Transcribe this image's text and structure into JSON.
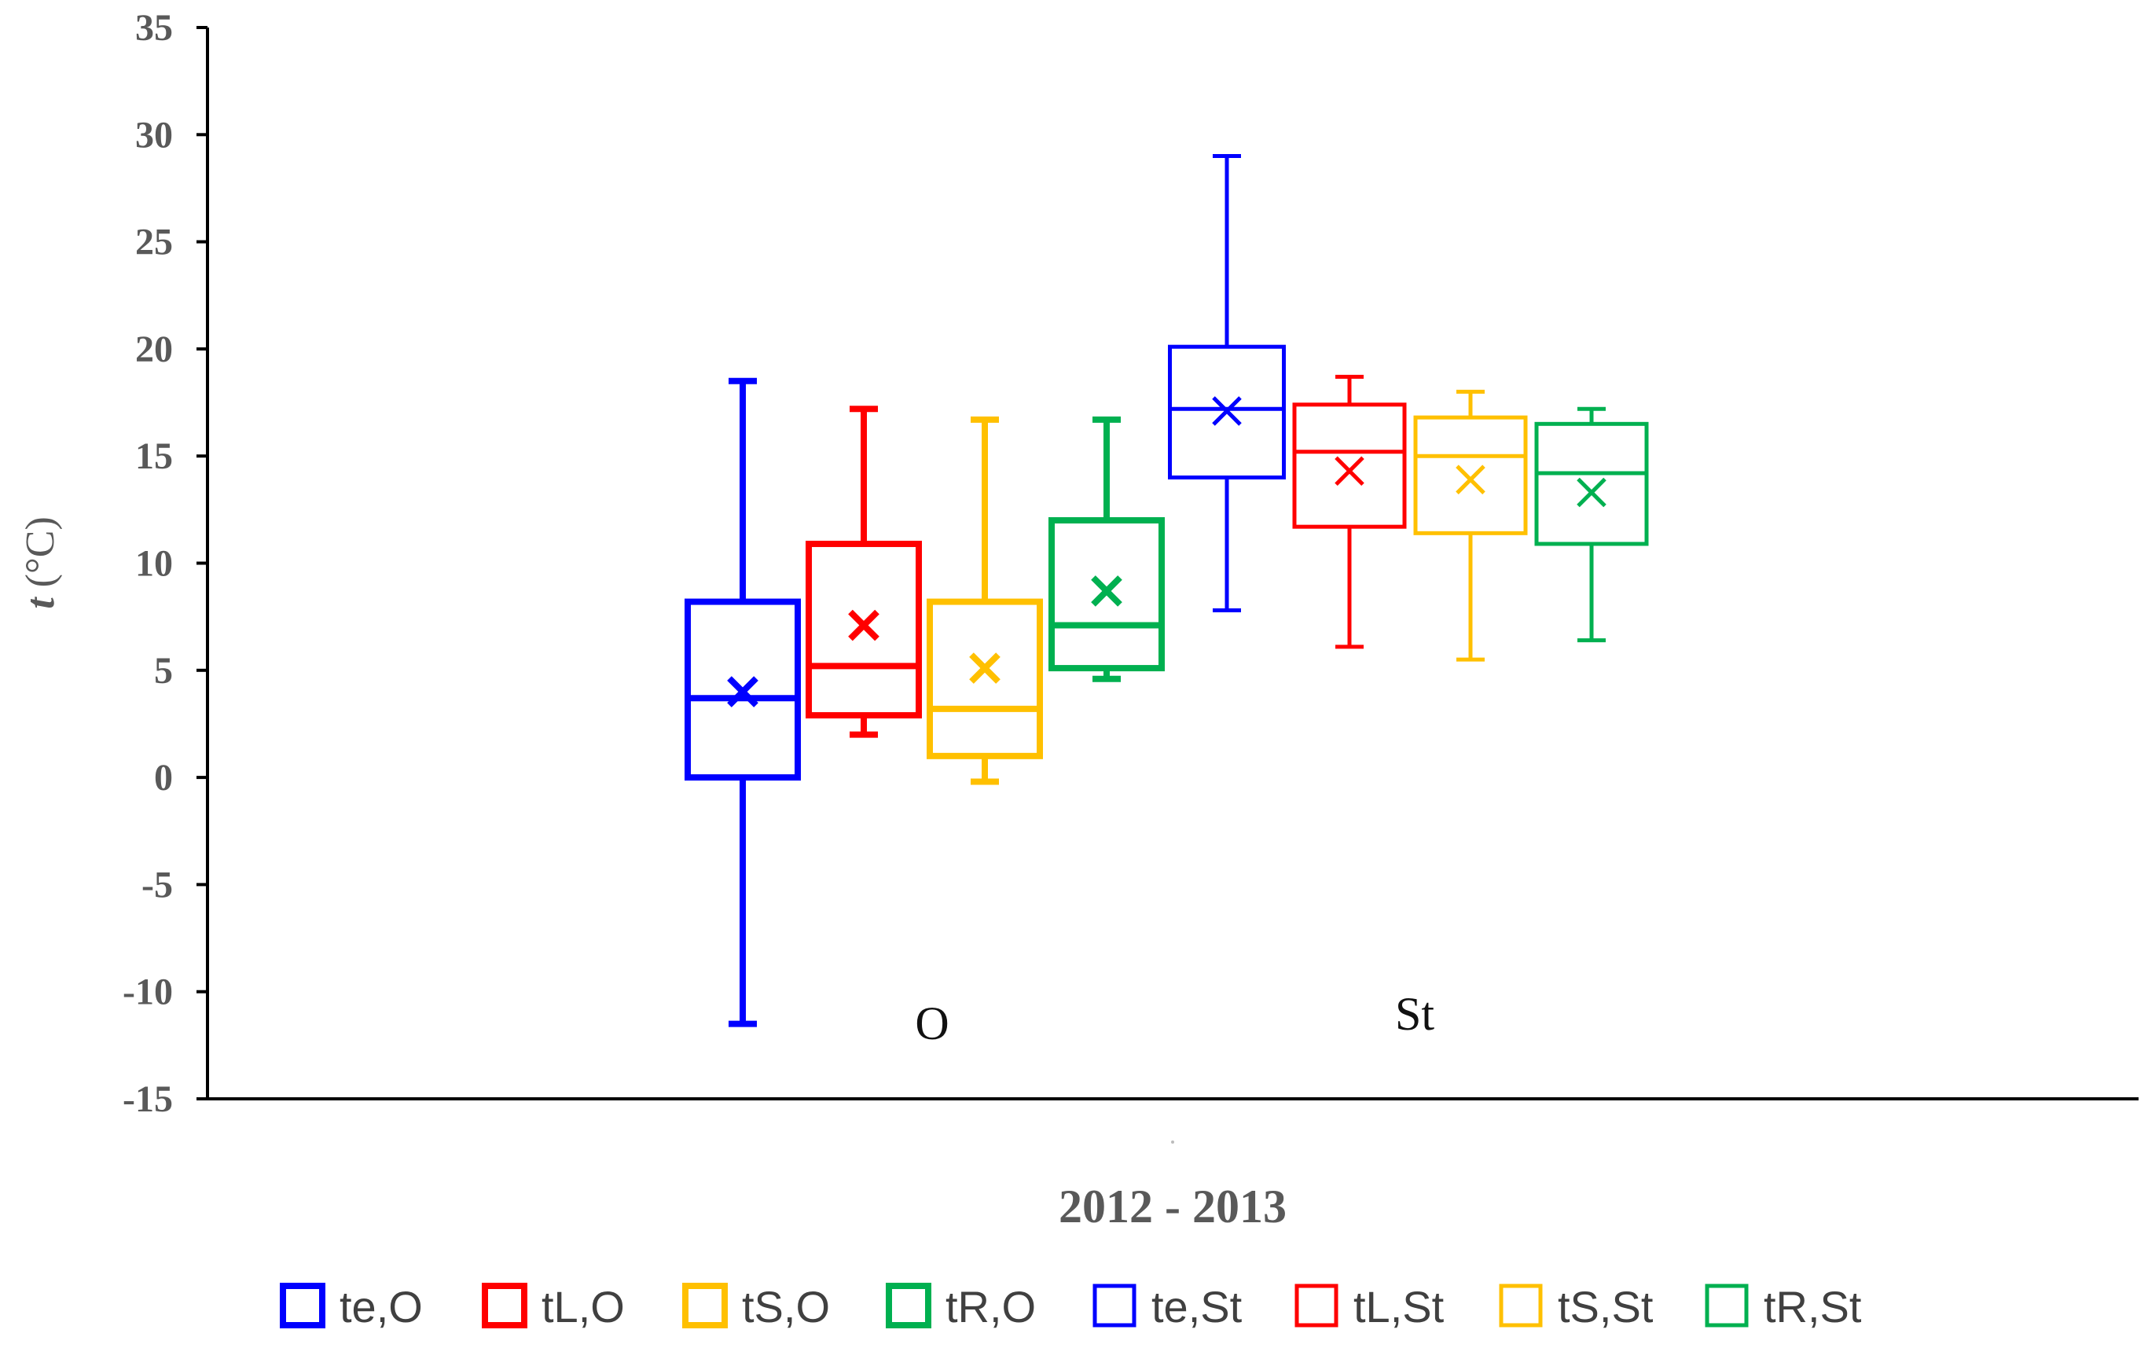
{
  "chart_data": {
    "type": "boxplot",
    "ylabel_italic": "t",
    "ylabel_rest": " (°C)",
    "xlabel": "2012 - 2013",
    "ylim": [
      -15,
      35
    ],
    "yticks": [
      35,
      30,
      25,
      20,
      15,
      10,
      5,
      0,
      -5,
      -10,
      -15
    ],
    "ytick_labels": [
      "35",
      "30",
      "25",
      "20",
      "15",
      "10",
      "5",
      "0",
      "-5",
      "-10",
      "-15"
    ],
    "groups": [
      {
        "label": "O"
      },
      {
        "label": "St"
      }
    ],
    "series": [
      {
        "name": "te,O",
        "group": "O",
        "color": "#0000ff",
        "bold": true,
        "min": -11.5,
        "q1": 0,
        "median": 3.7,
        "q3": 8.2,
        "max": 18.5,
        "mean": 4.0
      },
      {
        "name": "tL,O",
        "group": "O",
        "color": "#ff0000",
        "bold": true,
        "min": 2.0,
        "q1": 2.9,
        "median": 5.2,
        "q3": 10.9,
        "max": 17.2,
        "mean": 7.1
      },
      {
        "name": "tS,O",
        "group": "O",
        "color": "#ffc000",
        "bold": true,
        "min": -0.2,
        "q1": 1.0,
        "median": 3.2,
        "q3": 8.2,
        "max": 16.7,
        "mean": 5.1
      },
      {
        "name": "tR,O",
        "group": "O",
        "color": "#00b050",
        "bold": true,
        "min": 4.6,
        "q1": 5.1,
        "median": 7.1,
        "q3": 12.0,
        "max": 16.7,
        "mean": 8.7
      },
      {
        "name": "te,St",
        "group": "St",
        "color": "#0000ff",
        "bold": false,
        "min": 7.8,
        "q1": 14.0,
        "median": 17.2,
        "q3": 20.1,
        "max": 29.0,
        "mean": 17.1
      },
      {
        "name": "tL,St",
        "group": "St",
        "color": "#ff0000",
        "bold": false,
        "min": 6.1,
        "q1": 11.7,
        "median": 15.2,
        "q3": 17.4,
        "max": 18.7,
        "mean": 14.3
      },
      {
        "name": "tS,St",
        "group": "St",
        "color": "#ffc000",
        "bold": false,
        "min": 5.5,
        "q1": 11.4,
        "median": 15.0,
        "q3": 16.8,
        "max": 18.0,
        "mean": 13.9
      },
      {
        "name": "tR,St",
        "group": "St",
        "color": "#00b050",
        "bold": false,
        "min": 6.4,
        "q1": 10.9,
        "median": 14.2,
        "q3": 16.5,
        "max": 17.2,
        "mean": 13.3
      }
    ],
    "legend_position": "bottom"
  }
}
